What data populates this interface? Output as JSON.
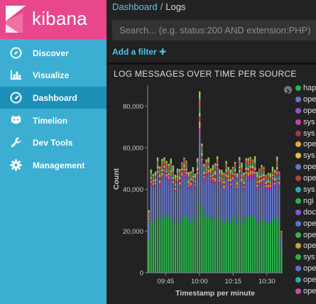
{
  "sidebar": {
    "brand": "kibana",
    "items": [
      {
        "label": "Discover",
        "icon": "compass-icon",
        "active": false
      },
      {
        "label": "Visualize",
        "icon": "bar-chart-icon",
        "active": false
      },
      {
        "label": "Dashboard",
        "icon": "dashboard-gauge-icon",
        "active": true
      },
      {
        "label": "Timelion",
        "icon": "timelion-icon",
        "active": false
      },
      {
        "label": "Dev Tools",
        "icon": "wrench-icon",
        "active": false
      },
      {
        "label": "Management",
        "icon": "gear-icon",
        "active": false
      }
    ]
  },
  "header": {
    "breadcrumb_root": "Dashboard",
    "breadcrumb_separator": "/",
    "breadcrumb_current": "Logs"
  },
  "search": {
    "placeholder": "Search... (e.g. status:200 AND extension:PHP)",
    "value": ""
  },
  "filters": {
    "add_label": "Add a filter ✚"
  },
  "panel": {
    "title": "LOG MESSAGES OVER TIME PER SOURCE"
  },
  "chart_data": {
    "type": "bar",
    "stacked": true,
    "xlabel": "Timestamp per minute",
    "ylabel": "Count",
    "ylim": [
      0,
      90000
    ],
    "yticks": [
      0,
      20000,
      40000,
      60000,
      80000
    ],
    "ytick_labels": [
      "0",
      "20,000",
      "40,000",
      "60,000",
      "80,000"
    ],
    "xticks": [
      "09:45",
      "10:00",
      "10:15",
      "10:30"
    ],
    "x_start": "09:37",
    "x_end": "10:37",
    "spike": {
      "time": "10:00",
      "total": 87000
    },
    "series_colors": [
      "#2bb24c",
      "#6677c8",
      "#8c52d8",
      "#cc3fa6",
      "#e2a83a",
      "#b5396b",
      "#d8c43d",
      "#2da8a2",
      "#a96a35",
      "#e25b5b",
      "#8bd356"
    ],
    "legend_colors": [
      "#2bb24c",
      "#6677c8",
      "#8c52d8",
      "#cc3fa6",
      "#9e3a4a",
      "#e2a83a",
      "#d8c43d",
      "#6677c8",
      "#b8413a",
      "#2da8a2",
      "#2bb24c",
      "#8c52d8",
      "#5c6ed0",
      "#3bb05a",
      "#c2a43d",
      "#2bb24c",
      "#5c6ed0",
      "#2da8a2",
      "#c84fa8"
    ],
    "legend_entries": [
      "hap",
      "ope",
      "ope",
      "sys",
      "sys",
      "ope",
      "sys",
      "ope",
      "ope",
      "sys",
      "ngi",
      "doc",
      "ope",
      "ope",
      "ope",
      "sys",
      "ope",
      "ope",
      "ope"
    ]
  }
}
